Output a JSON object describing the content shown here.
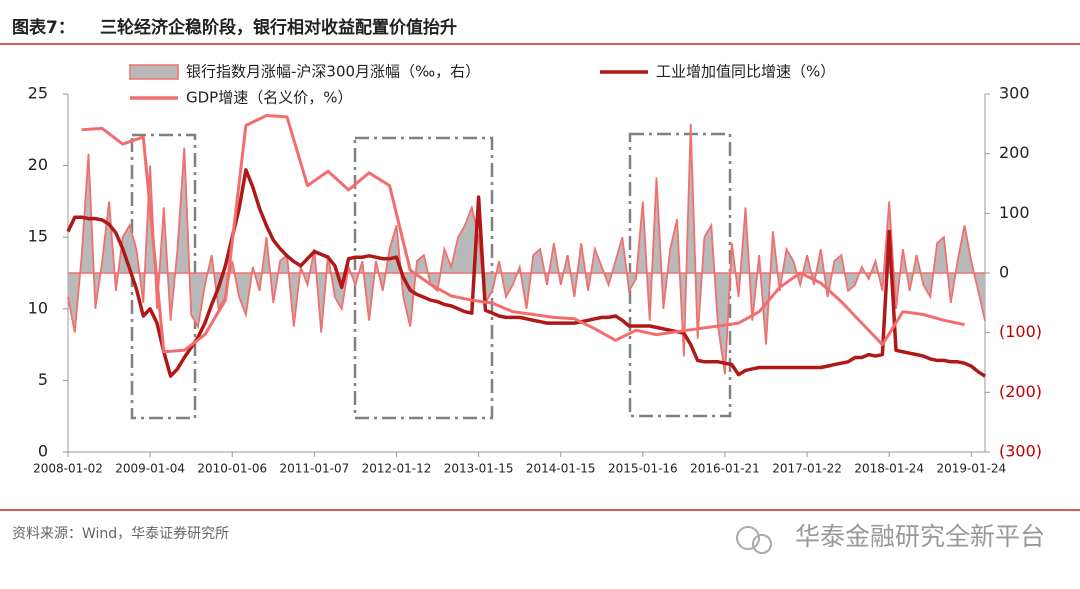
{
  "title_label": "图表7：",
  "title": "三轮经济企稳阶段，银行相对收益配置价值抬升",
  "source": "资料来源：Wind，华泰证券研究所",
  "watermark": "华泰金融研究全新平台",
  "chart_data": {
    "type": "line",
    "x": [
      "2008-01",
      "2008-02",
      "2008-03",
      "2008-04",
      "2008-05",
      "2008-06",
      "2008-07",
      "2008-08",
      "2008-09",
      "2008-10",
      "2008-11",
      "2008-12",
      "2009-01",
      "2009-02",
      "2009-03",
      "2009-04",
      "2009-05",
      "2009-06",
      "2009-07",
      "2009-08",
      "2009-09",
      "2009-10",
      "2009-11",
      "2009-12",
      "2010-01",
      "2010-02",
      "2010-03",
      "2010-04",
      "2010-05",
      "2010-06",
      "2010-07",
      "2010-08",
      "2010-09",
      "2010-10",
      "2010-11",
      "2010-12",
      "2011-01",
      "2011-02",
      "2011-03",
      "2011-04",
      "2011-05",
      "2011-06",
      "2011-07",
      "2011-08",
      "2011-09",
      "2011-10",
      "2011-11",
      "2011-12",
      "2012-01",
      "2012-02",
      "2012-03",
      "2012-04",
      "2012-05",
      "2012-06",
      "2012-07",
      "2012-08",
      "2012-09",
      "2012-10",
      "2012-11",
      "2012-12",
      "2013-01",
      "2013-02",
      "2013-03",
      "2013-04",
      "2013-05",
      "2013-06",
      "2013-07",
      "2013-08",
      "2013-09",
      "2013-10",
      "2013-11",
      "2013-12",
      "2014-01",
      "2014-02",
      "2014-03",
      "2014-04",
      "2014-05",
      "2014-06",
      "2014-07",
      "2014-08",
      "2014-09",
      "2014-10",
      "2014-11",
      "2014-12",
      "2015-01",
      "2015-02",
      "2015-03",
      "2015-04",
      "2015-05",
      "2015-06",
      "2015-07",
      "2015-08",
      "2015-09",
      "2015-10",
      "2015-11",
      "2015-12",
      "2016-01",
      "2016-02",
      "2016-03",
      "2016-04",
      "2016-05",
      "2016-06",
      "2016-07",
      "2016-08",
      "2016-09",
      "2016-10",
      "2016-11",
      "2016-12",
      "2017-01",
      "2017-02",
      "2017-03",
      "2017-04",
      "2017-05",
      "2017-06",
      "2017-07",
      "2017-08",
      "2017-09",
      "2017-10",
      "2017-11",
      "2017-12",
      "2018-01",
      "2018-02",
      "2018-03",
      "2018-04",
      "2018-05",
      "2018-06",
      "2018-07",
      "2018-08",
      "2018-09",
      "2018-10",
      "2018-11",
      "2018-12",
      "2019-01",
      "2019-02",
      "2019-03"
    ],
    "xlim": [
      "2008-01",
      "2019-03"
    ],
    "xticks": [
      {
        "value": "2008-01",
        "label": "2008-01-02"
      },
      {
        "value": "2009-01",
        "label": "2009-01-04"
      },
      {
        "value": "2010-01",
        "label": "2010-01-06"
      },
      {
        "value": "2011-01",
        "label": "2011-01-07"
      },
      {
        "value": "2012-01",
        "label": "2012-01-12"
      },
      {
        "value": "2013-01",
        "label": "2013-01-15"
      },
      {
        "value": "2014-01",
        "label": "2014-01-15"
      },
      {
        "value": "2015-01",
        "label": "2015-01-16"
      },
      {
        "value": "2016-01",
        "label": "2016-01-21"
      },
      {
        "value": "2017-01",
        "label": "2017-01-22"
      },
      {
        "value": "2018-01",
        "label": "2018-01-24"
      },
      {
        "value": "2019-01",
        "label": "2019-01-24"
      }
    ],
    "ylim": [
      0,
      25
    ],
    "yticks": [
      0,
      5,
      10,
      15,
      20,
      25
    ],
    "y2lim": [
      -300,
      300
    ],
    "y2ticks": [
      {
        "value": -300,
        "label": "(300)"
      },
      {
        "value": -200,
        "label": "(200)"
      },
      {
        "value": -100,
        "label": "(100)"
      },
      0,
      100,
      200,
      300
    ],
    "series": [
      {
        "name": "银行指数月涨幅-沪深300月涨幅（‰，右）",
        "kind": "area",
        "axis": "y2",
        "color": "#b9b9b9",
        "line_color": "#f07070",
        "values": [
          -40,
          -100,
          30,
          200,
          -60,
          20,
          120,
          -30,
          60,
          80,
          40,
          -50,
          180,
          -60,
          110,
          -80,
          40,
          210,
          -70,
          -90,
          -20,
          30,
          -60,
          -40,
          20,
          -40,
          -70,
          10,
          -30,
          60,
          -50,
          20,
          30,
          -90,
          10,
          -20,
          40,
          -100,
          30,
          -40,
          -60,
          10,
          -20,
          20,
          -80,
          20,
          -30,
          40,
          80,
          -40,
          -90,
          20,
          30,
          -20,
          -30,
          40,
          10,
          60,
          80,
          110,
          60,
          -50,
          -30,
          20,
          -40,
          -20,
          10,
          -60,
          30,
          40,
          -20,
          50,
          -20,
          30,
          -40,
          50,
          -30,
          40,
          10,
          -20,
          20,
          60,
          -30,
          -10,
          120,
          -80,
          160,
          -60,
          40,
          90,
          -140,
          250,
          -110,
          60,
          80,
          -90,
          -170,
          50,
          -40,
          110,
          -80,
          30,
          -120,
          70,
          -30,
          40,
          20,
          -20,
          30,
          -20,
          40,
          -40,
          20,
          30,
          -30,
          -20,
          10,
          -10,
          20,
          -30,
          120,
          -60,
          40,
          -30,
          30,
          -20,
          -40,
          50,
          60,
          -50,
          20,
          80,
          20,
          -30,
          -80
        ]
      },
      {
        "name": "工业增加值同比增速（%）",
        "kind": "line",
        "color": "#b01818",
        "values": [
          15.4,
          16.4,
          16.4,
          16.3,
          16.3,
          16.2,
          15.9,
          15.3,
          14.2,
          12.8,
          11.4,
          9.5,
          10.0,
          9.0,
          7.0,
          5.3,
          5.8,
          6.6,
          7.3,
          8.0,
          9.0,
          10.3,
          11.5,
          13.0,
          15.0,
          17.0,
          19.7,
          18.5,
          17.0,
          15.8,
          14.8,
          14.2,
          13.7,
          13.3,
          13.0,
          13.5,
          14.0,
          13.8,
          13.6,
          13.0,
          11.5,
          13.5,
          13.6,
          13.6,
          13.7,
          13.6,
          13.5,
          13.5,
          13.6,
          12.2,
          11.3,
          11.0,
          10.8,
          10.6,
          10.5,
          10.3,
          10.2,
          10.0,
          9.8,
          9.7,
          17.8,
          9.9,
          9.7,
          9.5,
          9.4,
          9.4,
          9.4,
          9.3,
          9.2,
          9.1,
          9.0,
          9.0,
          9.0,
          9.0,
          9.0,
          9.1,
          9.2,
          9.3,
          9.4,
          9.4,
          9.5,
          9.2,
          8.8,
          8.8,
          8.8,
          8.8,
          8.7,
          8.6,
          8.5,
          8.4,
          8.3,
          7.5,
          6.4,
          6.3,
          6.3,
          6.3,
          6.2,
          6.1,
          5.4,
          5.7,
          5.8,
          5.9,
          5.9,
          5.9,
          5.9,
          5.9,
          5.9,
          5.9,
          5.9,
          5.9,
          5.9,
          6.0,
          6.1,
          6.2,
          6.3,
          6.6,
          6.6,
          6.8,
          6.7,
          6.8,
          15.4,
          7.1,
          7.0,
          6.9,
          6.8,
          6.7,
          6.5,
          6.4,
          6.4,
          6.3,
          6.3,
          6.2,
          6.0,
          5.6,
          5.3
        ]
      },
      {
        "name": "GDP增速（名义价，%）",
        "kind": "line",
        "color": "#f26d6d",
        "x": [
          "2008-03",
          "2008-06",
          "2008-09",
          "2008-12",
          "2009-03",
          "2009-06",
          "2009-09",
          "2009-12",
          "2010-03",
          "2010-06",
          "2010-09",
          "2010-12",
          "2011-03",
          "2011-06",
          "2011-09",
          "2011-12",
          "2012-03",
          "2012-06",
          "2012-09",
          "2012-12",
          "2013-03",
          "2013-06",
          "2013-09",
          "2013-12",
          "2014-03",
          "2014-06",
          "2014-09",
          "2014-12",
          "2015-03",
          "2015-06",
          "2015-09",
          "2015-12",
          "2016-03",
          "2016-06",
          "2016-09",
          "2016-12",
          "2017-03",
          "2017-06",
          "2017-09",
          "2017-12",
          "2018-03",
          "2018-06",
          "2018-09",
          "2018-12"
        ],
        "values": [
          22.5,
          22.6,
          21.5,
          22.0,
          7.0,
          7.1,
          8.2,
          10.6,
          22.8,
          23.5,
          23.4,
          18.6,
          19.6,
          18.3,
          19.5,
          18.6,
          12.7,
          11.7,
          10.9,
          10.6,
          10.4,
          9.8,
          9.6,
          9.4,
          9.3,
          8.6,
          7.8,
          8.5,
          8.2,
          8.4,
          8.6,
          8.8,
          9.0,
          9.8,
          11.5,
          12.5,
          11.8,
          10.5,
          9.0,
          7.5,
          9.8,
          9.6,
          9.2,
          8.9
        ]
      }
    ]
  }
}
